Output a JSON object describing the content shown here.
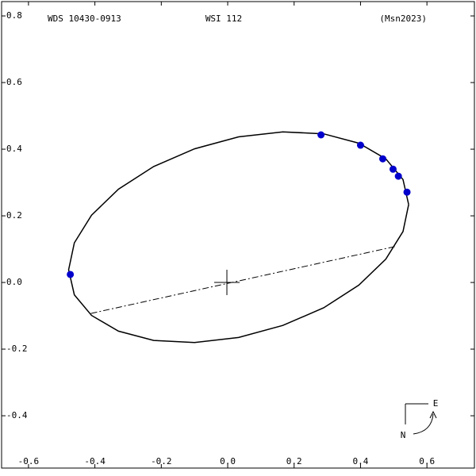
{
  "chart_data": {
    "type": "orbit",
    "title": "WDS 10430-0913",
    "subtitle": "WSI 112",
    "reference": "(Msn2023)",
    "xlim": [
      -0.681,
      0.743
    ],
    "ylim": [
      -0.557,
      0.843
    ],
    "xticks": [
      {
        "value": -0.6,
        "label": "-0.6"
      },
      {
        "value": -0.4,
        "label": "-0.4"
      },
      {
        "value": -0.2,
        "label": "-0.2"
      },
      {
        "value": 0,
        "label": "0.0"
      },
      {
        "value": 0.2,
        "label": "0.2"
      },
      {
        "value": 0.4,
        "label": "0.4"
      },
      {
        "value": 0.6,
        "label": "0.6"
      }
    ],
    "yticks": [
      {
        "value": -0.4,
        "label": "-0.4"
      },
      {
        "value": -0.2,
        "label": "-0.2"
      },
      {
        "value": 0,
        "label": "0.0"
      },
      {
        "value": 0.2,
        "label": "0.2"
      },
      {
        "value": 0.4,
        "label": "0.4"
      },
      {
        "value": 0.6,
        "label": "0.6"
      },
      {
        "value": 0.8,
        "label": "0.8"
      }
    ],
    "orbit": {
      "color": "#000000",
      "x": [
        0.545,
        0.528,
        0.476,
        0.395,
        0.289,
        0.166,
        0.033,
        -0.1,
        -0.223,
        -0.329,
        -0.41,
        -0.462,
        -0.479,
        -0.462,
        -0.41,
        -0.329,
        -0.223,
        -0.1,
        0.033,
        0.166,
        0.289,
        0.395,
        0.476,
        0.528,
        0.545
      ],
      "y": [
        0.234,
        0.309,
        0.371,
        0.418,
        0.446,
        0.452,
        0.437,
        0.401,
        0.348,
        0.28,
        0.202,
        0.119,
        0.038,
        -0.037,
        -0.099,
        -0.146,
        -0.174,
        -0.18,
        -0.165,
        -0.129,
        -0.076,
        -0.008,
        0.07,
        0.153,
        0.234
      ]
    },
    "line_of_nodes": {
      "color": "#000000",
      "x": [
        -0.412,
        0.509
      ],
      "y": [
        -0.093,
        0.109
      ]
    },
    "observations": {
      "color": "#0000cc",
      "x": [
        0.281,
        0.4,
        0.467,
        0.498,
        0.514,
        0.54,
        -0.474
      ],
      "y": [
        0.443,
        0.412,
        0.371,
        0.34,
        0.319,
        0.271,
        0.024
      ]
    },
    "compass": {
      "east": "E",
      "north": "N"
    }
  }
}
